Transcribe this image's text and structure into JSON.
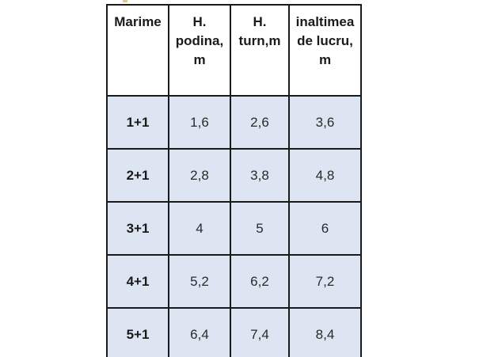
{
  "table": {
    "headers": [
      "Marime",
      "H. podina, m",
      "H. turn,m",
      "inaltimea de lucru, m"
    ],
    "header_lines": [
      [
        "Marime"
      ],
      [
        "H.",
        "podina,",
        "m"
      ],
      [
        "H.",
        "turn,m"
      ],
      [
        "inaltimea",
        "de lucru,",
        "m"
      ]
    ],
    "rows": [
      [
        "1+1",
        "1,6",
        "2,6",
        "3,6"
      ],
      [
        "2+1",
        "2,8",
        "3,8",
        "4,8"
      ],
      [
        "3+1",
        "4",
        "5",
        "6"
      ],
      [
        "4+1",
        "5,2",
        "6,2",
        "7,2"
      ],
      [
        "5+1",
        "6,4",
        "7,4",
        "8,4"
      ]
    ]
  },
  "colors": {
    "row_fill": "#dce5f1",
    "border": "#1a1a1a",
    "header_fill": "#ffffff"
  }
}
